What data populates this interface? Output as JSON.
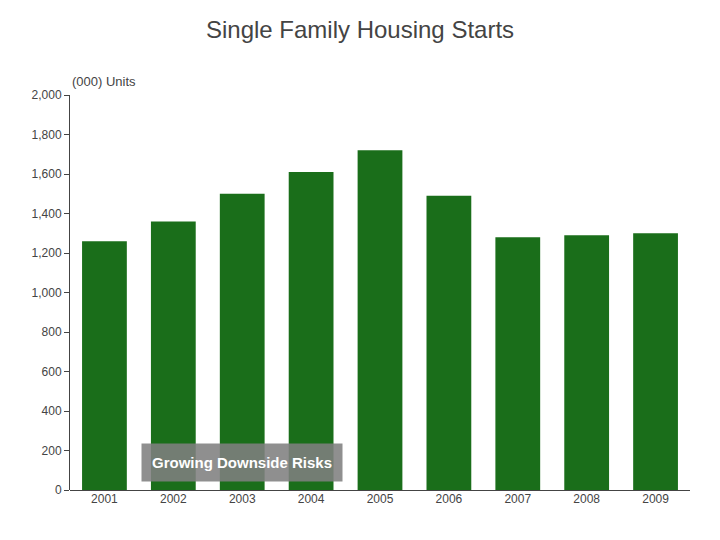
{
  "chart_data": {
    "type": "bar",
    "title": "Single Family Housing Starts",
    "subtitle": "(000) Units",
    "categories": [
      "2001",
      "2002",
      "2003",
      "2004",
      "2005",
      "2006",
      "2007",
      "2008",
      "2009"
    ],
    "values": [
      1260,
      1360,
      1500,
      1610,
      1720,
      1490,
      1280,
      1290,
      1300
    ],
    "color": "#1a6e1a",
    "ylim": [
      0,
      2000
    ],
    "yticks": [
      0,
      200,
      400,
      600,
      800,
      {
        "value": 1000,
        "label": "1,000"
      },
      {
        "value": 1200,
        "label": "1,200"
      },
      {
        "value": 1400,
        "label": "1,400"
      },
      {
        "value": 1600,
        "label": "1,600"
      },
      {
        "value": 1800,
        "label": "1,800"
      },
      {
        "value": 2000,
        "label": "2,000"
      }
    ],
    "grid": false,
    "annotation": "Growing Downside Risks"
  }
}
